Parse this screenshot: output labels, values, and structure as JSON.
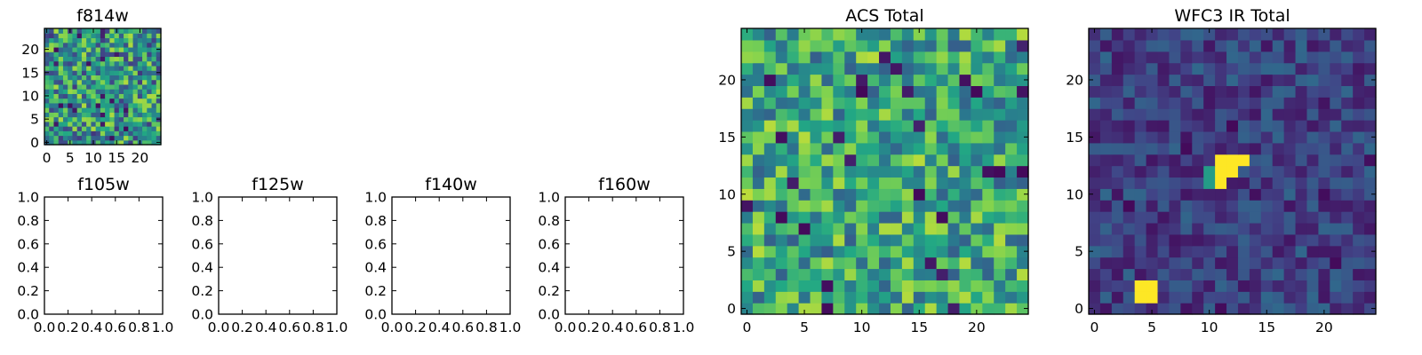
{
  "colormap": {
    "name": "viridis",
    "stops": [
      "#440154",
      "#414487",
      "#2a788e",
      "#22a884",
      "#7ad151",
      "#fde725"
    ]
  },
  "chart_data": [
    {
      "id": "f814w",
      "type": "heatmap",
      "title": "f814w",
      "grid_size": 25,
      "xlim": [
        -0.5,
        24.5
      ],
      "ylim": [
        -0.5,
        24.5
      ],
      "xticks": [
        0,
        5,
        10,
        15,
        20
      ],
      "yticks": [
        0,
        5,
        10,
        15,
        20
      ],
      "color_range": [
        0,
        1
      ],
      "noise": {
        "seed": 11,
        "base": 0.52,
        "spread": 0.36
      },
      "sources": []
    },
    {
      "id": "f105w",
      "type": "empty",
      "title": "f105w",
      "xlim": [
        0,
        1
      ],
      "ylim": [
        0,
        1
      ],
      "xticks": [
        "0.0",
        "0.2",
        "0.4",
        "0.6",
        "0.8",
        "1.0"
      ],
      "yticks": [
        "0.0",
        "0.2",
        "0.4",
        "0.6",
        "0.8",
        "1.0"
      ]
    },
    {
      "id": "f125w",
      "type": "empty",
      "title": "f125w",
      "xlim": [
        0,
        1
      ],
      "ylim": [
        0,
        1
      ],
      "xticks": [
        "0.0",
        "0.2",
        "0.4",
        "0.6",
        "0.8",
        "1.0"
      ],
      "yticks": [
        "0.0",
        "0.2",
        "0.4",
        "0.6",
        "0.8",
        "1.0"
      ]
    },
    {
      "id": "f140w",
      "type": "empty",
      "title": "f140w",
      "xlim": [
        0,
        1
      ],
      "ylim": [
        0,
        1
      ],
      "xticks": [
        "0.0",
        "0.2",
        "0.4",
        "0.6",
        "0.8",
        "1.0"
      ],
      "yticks": [
        "0.0",
        "0.2",
        "0.4",
        "0.6",
        "0.8",
        "1.0"
      ]
    },
    {
      "id": "f160w",
      "type": "empty",
      "title": "f160w",
      "xlim": [
        0,
        1
      ],
      "ylim": [
        0,
        1
      ],
      "xticks": [
        "0.0",
        "0.2",
        "0.4",
        "0.6",
        "0.8",
        "1.0"
      ],
      "yticks": [
        "0.0",
        "0.2",
        "0.4",
        "0.6",
        "0.8",
        "1.0"
      ]
    },
    {
      "id": "acs-total",
      "type": "heatmap",
      "title": "ACS Total",
      "grid_size": 25,
      "xlim": [
        -0.5,
        24.5
      ],
      "ylim": [
        -0.5,
        24.5
      ],
      "xticks": [
        0,
        5,
        10,
        15,
        20
      ],
      "yticks": [
        0,
        5,
        10,
        15,
        20
      ],
      "color_range": [
        0,
        1
      ],
      "noise": {
        "seed": 29,
        "base": 0.6,
        "spread": 0.3
      },
      "sources": []
    },
    {
      "id": "wfc3-ir-total",
      "type": "heatmap",
      "title": "WFC3 IR Total",
      "grid_size": 25,
      "xlim": [
        -0.5,
        24.5
      ],
      "ylim": [
        -0.5,
        24.5
      ],
      "xticks": [
        0,
        5,
        10,
        15,
        20
      ],
      "yticks": [
        0,
        5,
        10,
        15,
        20
      ],
      "color_range": [
        0,
        1
      ],
      "noise": {
        "seed": 47,
        "base": 0.2,
        "spread": 0.14
      },
      "sources": [
        {
          "x": [
            11,
            13
          ],
          "y": [
            13,
            13
          ],
          "value": 1.0
        },
        {
          "x": [
            11,
            12
          ],
          "y": [
            12,
            12
          ],
          "value": 1.0
        },
        {
          "x": [
            10,
            10
          ],
          "y": [
            12,
            11
          ],
          "value": 0.55
        },
        {
          "x": [
            11,
            11
          ],
          "y": [
            11,
            11
          ],
          "value": 1.0
        },
        {
          "x": [
            4,
            5
          ],
          "y": [
            1,
            2
          ],
          "value": 1.0
        }
      ]
    }
  ]
}
